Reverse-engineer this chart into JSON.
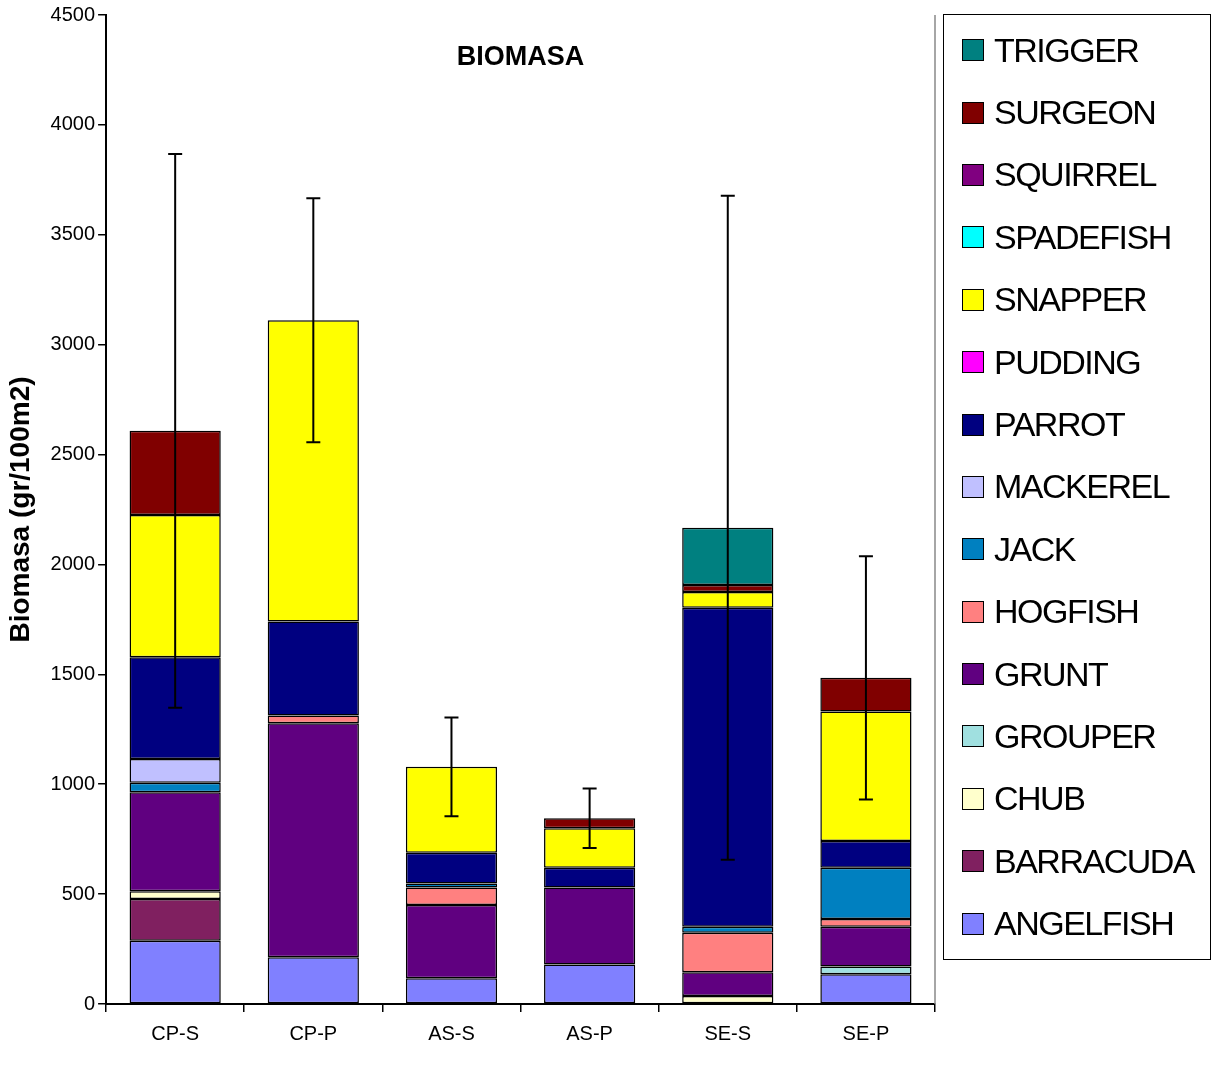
{
  "chart_data": {
    "type": "bar",
    "title": "BIOMASA",
    "ylabel": "Biomasa (gr/100m2)",
    "categories": [
      "CP-S",
      "CP-P",
      "AS-S",
      "AS-P",
      "SE-S",
      "SE-P"
    ],
    "stacked": true,
    "ylim": [
      0,
      4500
    ],
    "yticks": [
      0,
      500,
      1000,
      1500,
      2000,
      2500,
      3000,
      3500,
      4000,
      4500
    ],
    "grid": false,
    "legend": "right",
    "series": [
      {
        "name": "ANGELFISH",
        "color": "#8080ff",
        "values": [
          288,
          213,
          117,
          180,
          0,
          135
        ]
      },
      {
        "name": "BARRACUDA",
        "color": "#802060",
        "values": [
          190,
          0,
          0,
          0,
          0,
          0
        ]
      },
      {
        "name": "CHUB",
        "color": "#ffffcc",
        "values": [
          35,
          0,
          0,
          0,
          36,
          0
        ]
      },
      {
        "name": "GROUPER",
        "color": "#a0e0e0",
        "values": [
          0,
          0,
          0,
          0,
          0,
          36
        ]
      },
      {
        "name": "GRUNT",
        "color": "#600080",
        "values": [
          450,
          1064,
          333,
          350,
          108,
          180
        ]
      },
      {
        "name": "HOGFISH",
        "color": "#ff8080",
        "values": [
          0,
          36,
          80,
          0,
          180,
          36
        ]
      },
      {
        "name": "JACK",
        "color": "#0080c0",
        "values": [
          44,
          0,
          18,
          0,
          27,
          233
        ]
      },
      {
        "name": "MACKEREL",
        "color": "#c0c0ff",
        "values": [
          108,
          0,
          0,
          0,
          0,
          0
        ]
      },
      {
        "name": "PARROT",
        "color": "#000080",
        "values": [
          463,
          427,
          140,
          90,
          1452,
          122
        ]
      },
      {
        "name": "PUDDING",
        "color": "#ff00ff",
        "values": [
          0,
          0,
          0,
          0,
          0,
          0
        ]
      },
      {
        "name": "SNAPPER",
        "color": "#ffff00",
        "values": [
          647,
          1371,
          391,
          180,
          72,
          589
        ]
      },
      {
        "name": "SPADEFISH",
        "color": "#00ffff",
        "values": [
          0,
          0,
          0,
          0,
          0,
          0
        ]
      },
      {
        "name": "SQUIRREL",
        "color": "#800080",
        "values": [
          0,
          0,
          0,
          0,
          0,
          0
        ]
      },
      {
        "name": "SURGEON",
        "color": "#800000",
        "values": [
          383,
          0,
          0,
          45,
          31,
          153
        ]
      },
      {
        "name": "TRIGGER",
        "color": "#008080",
        "values": [
          0,
          0,
          0,
          0,
          261,
          0
        ],
        "errors": [
          1260,
          555,
          225,
          135,
          1511,
          553
        ]
      }
    ]
  }
}
